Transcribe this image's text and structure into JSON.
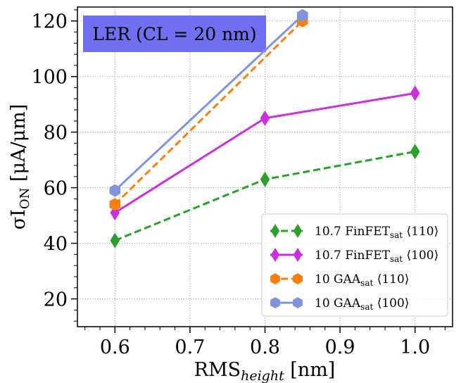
{
  "chart_data": {
    "type": "line",
    "title": "",
    "xlabel_main": "RMS",
    "xlabel_sub": "height",
    "xlabel_unit": " [nm]",
    "ylabel_pre": "σI",
    "ylabel_sub": "ON",
    "ylabel_unit": " [μA/μm]",
    "xlim": [
      0.55,
      1.05
    ],
    "ylim": [
      10,
      125
    ],
    "xticks": [
      0.6,
      0.7,
      0.8,
      0.9,
      1.0
    ],
    "xtick_labels": [
      "0.6",
      "0.7",
      "0.8",
      "0.9",
      "1.0"
    ],
    "yticks": [
      20,
      40,
      60,
      80,
      100,
      120
    ],
    "ytick_labels": [
      "20",
      "40",
      "60",
      "80",
      "100",
      "120"
    ],
    "grid": true,
    "legend_position": "bottom-right",
    "annotation": "LER (CL = 20 nm)",
    "annotation_color": "#6f6ff0",
    "series": [
      {
        "legend_main": "10.7 FinFET",
        "legend_sub": "sat",
        "legend_orient": " ⟨110⟩",
        "x": [
          0.6,
          0.8,
          1.0
        ],
        "values": [
          41,
          63,
          73
        ],
        "color": "#2ca02c",
        "dash": true,
        "marker": "thin-diamond"
      },
      {
        "legend_main": "10.7 FinFET",
        "legend_sub": "sat",
        "legend_orient": " ⟨100⟩",
        "x": [
          0.6,
          0.8,
          1.0
        ],
        "values": [
          51,
          85,
          94
        ],
        "color": "#cc2ee0",
        "dash": false,
        "marker": "thin-diamond"
      },
      {
        "legend_main": "10 GAA",
        "legend_sub": "sat",
        "legend_orient": " ⟨110⟩",
        "x": [
          0.6,
          0.85
        ],
        "values": [
          54,
          120
        ],
        "color": "#ff7f0e",
        "dash": true,
        "marker": "hexagon"
      },
      {
        "legend_main": "10 GAA",
        "legend_sub": "sat",
        "legend_orient": " ⟨100⟩",
        "x": [
          0.6,
          0.85
        ],
        "values": [
          59,
          122
        ],
        "color": "#8093dc",
        "dash": false,
        "marker": "hexagon"
      }
    ]
  }
}
